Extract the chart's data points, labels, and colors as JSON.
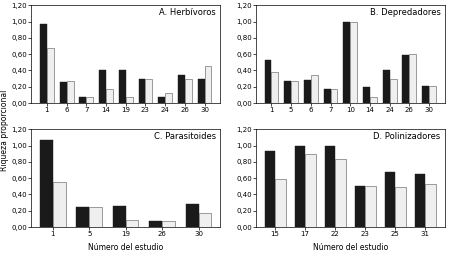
{
  "panels": [
    {
      "title": "A. Herbívoros",
      "categories": [
        "1",
        "6",
        "7",
        "14",
        "19",
        "23",
        "24",
        "26",
        "30"
      ],
      "black": [
        0.97,
        0.26,
        0.07,
        0.4,
        0.4,
        0.3,
        0.07,
        0.35,
        0.29
      ],
      "white": [
        0.67,
        0.27,
        0.08,
        0.17,
        0.07,
        0.3,
        0.12,
        0.29,
        0.46
      ]
    },
    {
      "title": "B. Depredadores",
      "categories": [
        "1",
        "5",
        "6",
        "7",
        "10",
        "14",
        "24",
        "26",
        "30"
      ],
      "black": [
        0.53,
        0.27,
        0.28,
        0.17,
        1.0,
        0.2,
        0.4,
        0.59,
        0.21
      ],
      "white": [
        0.38,
        0.27,
        0.34,
        0.17,
        1.0,
        0.08,
        0.3,
        0.6,
        0.21
      ]
    },
    {
      "title": "C. Parasitoides",
      "categories": [
        "1",
        "5",
        "19",
        "26",
        "30"
      ],
      "black": [
        1.07,
        0.25,
        0.26,
        0.07,
        0.28
      ],
      "white": [
        0.55,
        0.25,
        0.09,
        0.07,
        0.17
      ]
    },
    {
      "title": "D. Polinizadores",
      "categories": [
        "15",
        "17",
        "22",
        "23",
        "25",
        "31"
      ],
      "black": [
        0.93,
        1.0,
        1.0,
        0.5,
        0.67,
        0.65
      ],
      "white": [
        0.59,
        0.9,
        0.83,
        0.5,
        0.49,
        0.53
      ]
    }
  ],
  "ylabel": "Riqueza proporcional",
  "xlabel": "Número del estudio",
  "ylim": [
    0,
    1.2
  ],
  "yticks": [
    0.0,
    0.2,
    0.4,
    0.6,
    0.8,
    1.0,
    1.2
  ],
  "bar_width": 0.35,
  "black_color": "#1a1a1a",
  "white_color": "#efefef",
  "white_edge": "#555555",
  "tick_fontsize": 5.0,
  "title_fontsize": 6.0,
  "label_fontsize": 5.5
}
